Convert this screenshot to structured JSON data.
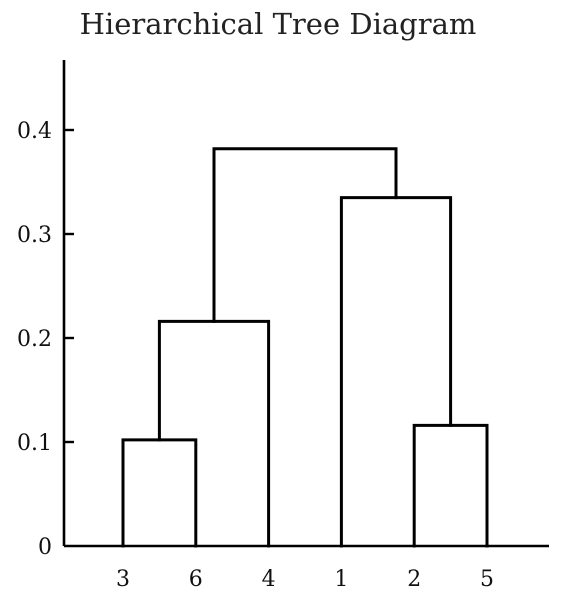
{
  "chart_data": {
    "type": "dendrogram",
    "title": "Hierarchical Tree Diagram",
    "xlabel": "",
    "ylabel": "",
    "leaf_order": [
      "3",
      "6",
      "4",
      "1",
      "2",
      "5"
    ],
    "yticks": [
      0,
      0.1,
      0.2,
      0.3,
      0.4
    ],
    "ytick_labels": [
      "0",
      "0.1",
      "0.2",
      "0.3",
      "0.4"
    ],
    "ylim": [
      0,
      0.465
    ],
    "merges": [
      {
        "left": "3",
        "right": "6",
        "height": 0.102
      },
      {
        "left": "2",
        "right": "5",
        "height": 0.116
      },
      {
        "left": "3,6",
        "right": "4",
        "height": 0.216
      },
      {
        "left": "1",
        "right": "2,5",
        "height": 0.335
      },
      {
        "left": "3,6,4",
        "right": "1,2,5",
        "height": 0.382
      }
    ],
    "grid": false,
    "legend": "none"
  }
}
